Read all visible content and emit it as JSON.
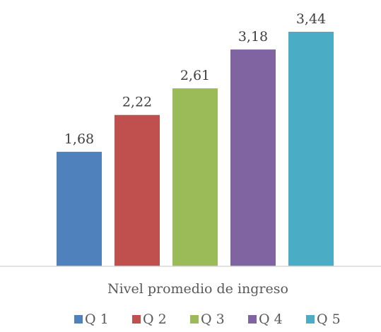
{
  "chart_data": {
    "type": "bar",
    "title": "",
    "xlabel": "",
    "ylabel": "",
    "categories": [
      "Nivel promedio de ingreso"
    ],
    "series": [
      {
        "name": "Q 1",
        "values": [
          1.68
        ],
        "label": "1,68",
        "color": "#4f81bd"
      },
      {
        "name": "Q 2",
        "values": [
          2.22
        ],
        "label": "2,22",
        "color": "#c0504d"
      },
      {
        "name": "Q 3",
        "values": [
          2.61
        ],
        "label": "2,61",
        "color": "#9bbb59"
      },
      {
        "name": "Q 4",
        "values": [
          3.18
        ],
        "label": "3,18",
        "color": "#8064a2"
      },
      {
        "name": "Q 5",
        "values": [
          3.44
        ],
        "label": "3,44",
        "color": "#4bacc6"
      }
    ],
    "ylim": [
      0,
      3.44
    ],
    "grid": false,
    "legend": "bottom"
  }
}
